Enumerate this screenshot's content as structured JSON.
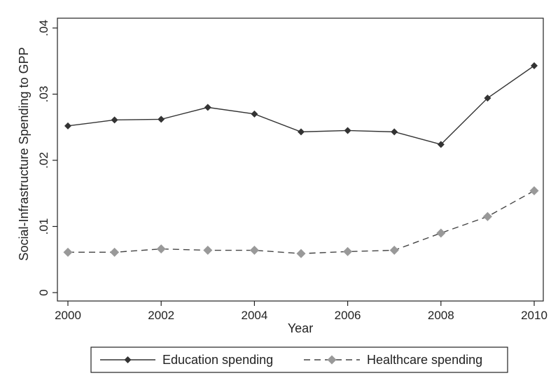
{
  "chart_data": {
    "type": "line",
    "title": "",
    "xlabel": "Year",
    "ylabel": "Social-Infrastructure Spending to GPP",
    "x": [
      2000,
      2001,
      2002,
      2003,
      2004,
      2005,
      2006,
      2007,
      2008,
      2009,
      2010
    ],
    "xlim": [
      2000,
      2010
    ],
    "ylim": [
      0,
      0.04
    ],
    "x_ticks": [
      2000,
      2002,
      2004,
      2006,
      2008,
      2010
    ],
    "x_tick_labels": [
      "2000",
      "2002",
      "2004",
      "2006",
      "2008",
      "2010"
    ],
    "y_ticks": [
      0,
      0.01,
      0.02,
      0.03,
      0.04
    ],
    "y_tick_labels": [
      "0",
      ".01",
      ".02",
      ".03",
      ".04"
    ],
    "grid": false,
    "legend_position": "bottom",
    "series": [
      {
        "name": "Education spending",
        "values": [
          0.0252,
          0.0261,
          0.0262,
          0.028,
          0.027,
          0.0243,
          0.0245,
          0.0243,
          0.0224,
          0.0294,
          0.0343
        ],
        "color": "#333333",
        "line_style": "solid",
        "marker": "diamond"
      },
      {
        "name": "Healthcare spending",
        "values": [
          0.0061,
          0.0061,
          0.0066,
          0.0064,
          0.0064,
          0.0059,
          0.0062,
          0.0064,
          0.009,
          0.0115,
          0.0154
        ],
        "color": "#999999",
        "line_style": "dashed",
        "marker": "diamond"
      }
    ]
  }
}
